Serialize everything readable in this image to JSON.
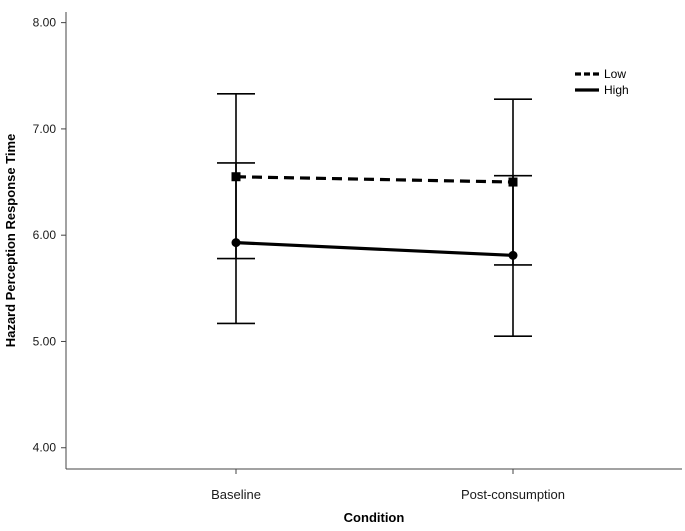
{
  "chart_data": {
    "type": "line",
    "title": "",
    "xlabel": "Condition",
    "ylabel": "Hazard Perception Response Time",
    "categories": [
      "Baseline",
      "Post-consumption"
    ],
    "ylim": [
      3.8,
      8.1
    ],
    "yticks": [
      4.0,
      5.0,
      6.0,
      7.0,
      8.0
    ],
    "ytick_labels": [
      "4.00",
      "5.00",
      "6.00",
      "7.00",
      "8.00"
    ],
    "grid": false,
    "legend_position": "top-right",
    "series": [
      {
        "name": "Low",
        "line_style": "dashed",
        "marker": "square",
        "values": [
          6.55,
          6.5
        ],
        "error_low": [
          5.78,
          5.72
        ],
        "error_high": [
          7.33,
          7.28
        ]
      },
      {
        "name": "High",
        "line_style": "solid",
        "marker": "circle",
        "values": [
          5.93,
          5.81
        ],
        "error_low": [
          5.17,
          5.05
        ],
        "error_high": [
          6.68,
          6.56
        ]
      }
    ]
  },
  "colors": {
    "line": "#000000",
    "axis": "#444444"
  }
}
